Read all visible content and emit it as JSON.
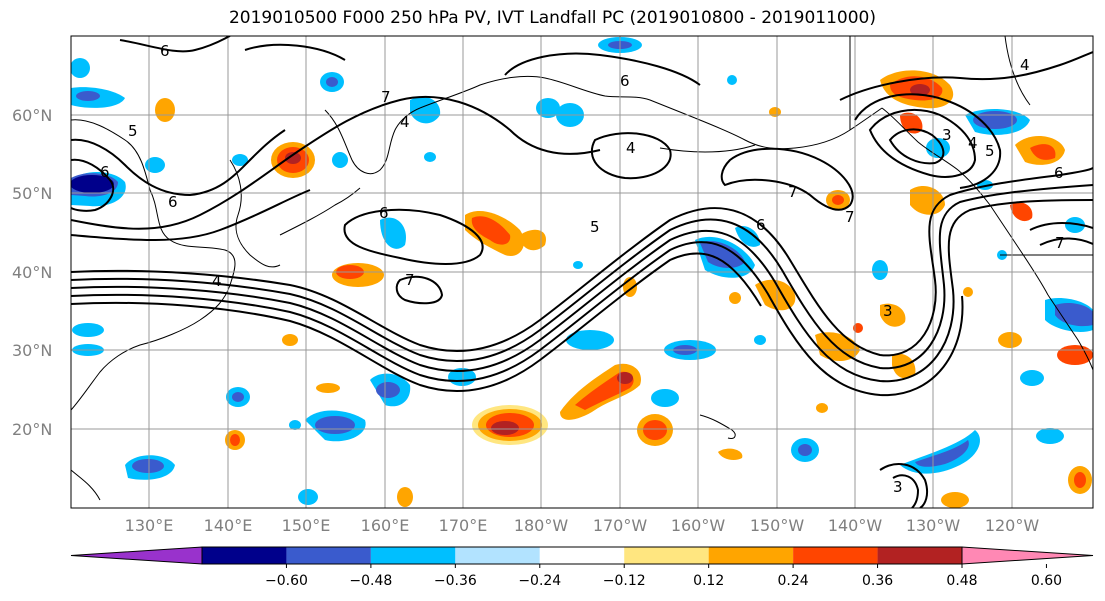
{
  "title": "2019010500 F000 250 hPa PV, IVT Landfall PC (2019010800 - 2019011000)",
  "lat_labels": [
    "60°N",
    "50°N",
    "40°N",
    "30°N",
    "20°N"
  ],
  "lon_labels": [
    "130°E",
    "140°E",
    "150°E",
    "160°E",
    "170°E",
    "180°W",
    "170°W",
    "160°W",
    "150°W",
    "140°W",
    "130°W",
    "120°W"
  ],
  "colorbar": {
    "ticks": [
      "−0.60",
      "−0.48",
      "−0.36",
      "−0.24",
      "−0.12",
      "0.12",
      "0.24",
      "0.36",
      "0.48",
      "0.60"
    ],
    "colors": [
      "#9932cc",
      "#00008b",
      "#3a5bcd",
      "#00bfff",
      "#b2e3ff",
      "#ffffff",
      "#ffe680",
      "#ffa500",
      "#ff4500",
      "#b22222",
      "#ff88b4"
    ]
  },
  "contour_labels": [
    "6",
    "7",
    "5",
    "6",
    "6",
    "6",
    "4",
    "7",
    "6",
    "5",
    "4",
    "7",
    "6",
    "3",
    "4",
    "5",
    "6",
    "7",
    "4",
    "3",
    "3",
    "4",
    "7"
  ]
}
